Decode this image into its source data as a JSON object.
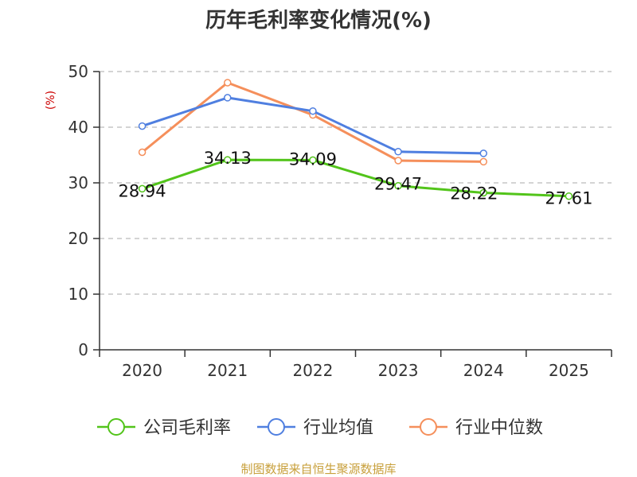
{
  "chart_data": {
    "type": "line",
    "title": "历年毛利率变化情况(%)",
    "ylabel": "(%)",
    "xlabel": "",
    "categories": [
      "2020",
      "2021",
      "2022",
      "2023",
      "2024",
      "2025"
    ],
    "ylim": [
      0,
      50
    ],
    "yticks": [
      0,
      10,
      20,
      30,
      40,
      50
    ],
    "grid": true,
    "legend_position": "bottom-center",
    "series": [
      {
        "name": "公司毛利率",
        "color": "#52c41a",
        "values": [
          28.94,
          34.13,
          34.09,
          29.47,
          28.22,
          27.61
        ],
        "labels": [
          "28.94",
          "34.13",
          "34.09",
          "29.47",
          "28.22",
          "27.61"
        ]
      },
      {
        "name": "行业均值",
        "color": "#4f7fe0",
        "values": [
          40.2,
          45.3,
          42.9,
          35.6,
          35.3,
          null
        ]
      },
      {
        "name": "行业中位数",
        "color": "#f58f5b",
        "values": [
          35.5,
          48.0,
          42.2,
          34.0,
          33.8,
          null
        ]
      }
    ]
  },
  "footer": {
    "source": "制图数据来自恒生聚源数据库"
  }
}
